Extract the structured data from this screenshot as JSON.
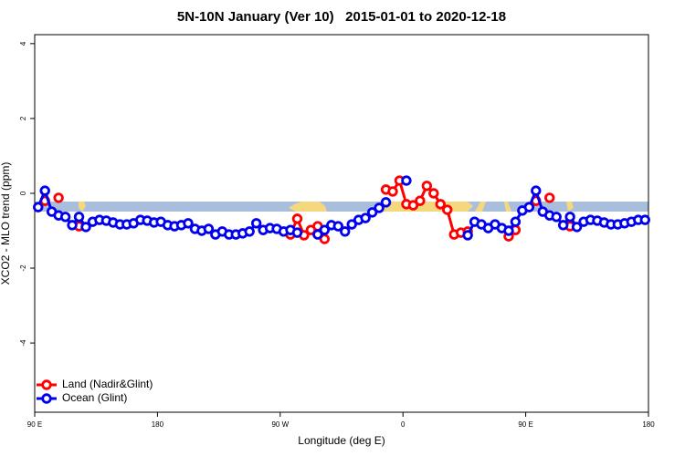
{
  "chart_data": {
    "type": "line",
    "title": "5N-10N January (Ver 10)   2015-01-01 to 2020-12-18",
    "x_label": "Longitude (deg E)",
    "y_label": "XCO2 - MLO trend (ppm)",
    "xlim": [
      90,
      540
    ],
    "ylim": [
      -5.85,
      4.24
    ],
    "xticks": [
      {
        "value": 90,
        "label": "90 E"
      },
      180,
      {
        "value": 270,
        "label": "90 W"
      },
      {
        "value": 360,
        "label": "0"
      },
      {
        "value": 450,
        "label": "90 E"
      },
      {
        "value": 540,
        "label": "180"
      }
    ],
    "yticks": [
      -4,
      -2,
      0,
      2,
      4
    ],
    "legend": "bottom-left",
    "x": [
      92.5,
      97.5,
      102.5,
      107.5,
      112.5,
      117.5,
      122.5,
      127.5,
      132.5,
      137.5,
      142.5,
      147.5,
      152.5,
      157.5,
      162.5,
      167.5,
      172.5,
      177.5,
      182.5,
      187.5,
      192.5,
      197.5,
      202.5,
      207.5,
      212.5,
      217.5,
      222.5,
      227.5,
      232.5,
      237.5,
      242.5,
      247.5,
      252.5,
      257.5,
      262.5,
      267.5,
      272.5,
      277.5,
      282.5,
      287.5,
      292.5,
      297.5,
      302.5,
      307.5,
      312.5,
      317.5,
      322.5,
      327.5,
      332.5,
      337.5,
      342.5,
      347.5,
      352.5,
      357.5,
      362.5,
      367.5,
      372.5,
      377.5,
      382.5,
      387.5,
      392.5,
      397.5,
      402.5,
      407.5,
      412.5,
      417.5,
      422.5,
      427.5,
      432.5,
      437.5,
      442.5,
      447.5,
      452.5,
      457.5,
      462.5,
      467.5,
      472.5,
      477.5,
      482.5,
      487.5,
      492.5,
      497.5,
      502.5,
      507.5,
      512.5,
      517.5,
      522.5,
      527.5,
      532.5,
      537.5
    ],
    "series": [
      {
        "name": "Land (Nadir&Glint)",
        "color": "#ff0000",
        "values": [
          null,
          -0.2,
          null,
          -0.12,
          null,
          null,
          -0.88,
          null,
          null,
          null,
          null,
          null,
          null,
          null,
          null,
          null,
          null,
          null,
          null,
          null,
          null,
          null,
          null,
          null,
          null,
          null,
          null,
          null,
          null,
          null,
          null,
          null,
          null,
          null,
          null,
          null,
          null,
          -1.1,
          -0.68,
          -1.12,
          -0.98,
          -0.88,
          -1.22,
          null,
          null,
          null,
          null,
          null,
          null,
          null,
          null,
          0.1,
          0.05,
          0.34,
          -0.29,
          -0.32,
          -0.2,
          0.2,
          0,
          -0.29,
          -0.44,
          -1.1,
          -1.05,
          -1.02,
          null,
          null,
          null,
          null,
          null,
          -1.15,
          -0.98,
          null,
          null,
          -0.2,
          null,
          -0.12,
          null,
          null,
          -0.88,
          null,
          null,
          null,
          null,
          null,
          null,
          null,
          null,
          null,
          null,
          null
        ]
      },
      {
        "name": "Ocean (Glint)",
        "color": "#0000ee",
        "values": [
          -0.37,
          0.07,
          -0.49,
          -0.59,
          -0.63,
          -0.85,
          -0.63,
          -0.9,
          -0.76,
          -0.71,
          -0.73,
          -0.78,
          -0.83,
          -0.83,
          -0.8,
          -0.71,
          -0.73,
          -0.78,
          -0.76,
          -0.85,
          -0.88,
          -0.85,
          -0.8,
          -0.95,
          -1.0,
          -0.95,
          -1.1,
          -1.02,
          -1.1,
          -1.1,
          -1.07,
          -1.02,
          -0.8,
          -0.98,
          -0.93,
          -0.95,
          -1.02,
          -0.98,
          -1.05,
          null,
          null,
          -1.1,
          -0.98,
          -0.85,
          -0.88,
          -1.02,
          -0.83,
          -0.71,
          -0.66,
          -0.51,
          -0.39,
          -0.24,
          null,
          null,
          0.34,
          null,
          null,
          null,
          null,
          null,
          null,
          null,
          null,
          -1.12,
          -0.76,
          -0.83,
          -0.93,
          -0.83,
          -0.93,
          -1.0,
          -0.76,
          -0.46,
          -0.37,
          0.07,
          -0.49,
          -0.59,
          -0.63,
          -0.85,
          -0.63,
          -0.9,
          -0.76,
          -0.71,
          -0.73,
          -0.78,
          -0.83,
          -0.83,
          -0.8,
          -0.76,
          -0.71,
          -0.71
        ]
      }
    ]
  }
}
